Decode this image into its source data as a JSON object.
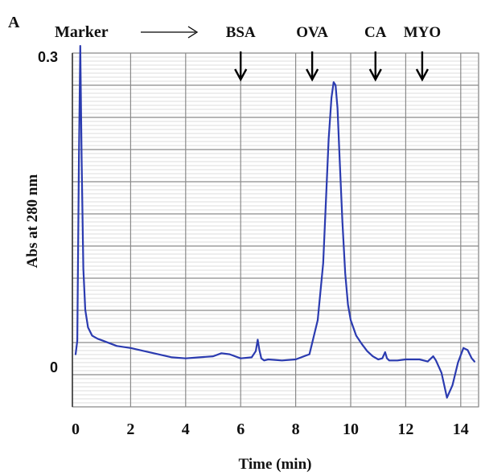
{
  "chart_data": {
    "type": "line",
    "panel_label": "A",
    "title": "",
    "xlabel": "Time (min)",
    "ylabel": "Abs at 280 nm",
    "xlim": [
      0,
      14.5
    ],
    "x_ticks": [
      "0",
      "2",
      "4",
      "6",
      "8",
      "10",
      "12",
      "14"
    ],
    "y_ticks": [
      "0",
      "0.3"
    ],
    "grid": true,
    "line_color": "#2b3bb0",
    "grid_color": "#8a8a8a",
    "marker_label": "Marker",
    "markers": [
      {
        "label": "BSA",
        "x": 6.0
      },
      {
        "label": "OVA",
        "x": 8.6
      },
      {
        "label": "CA",
        "x": 10.9
      },
      {
        "label": "MYO",
        "x": 12.6
      }
    ],
    "series": [
      {
        "x": [
          0,
          0.06,
          0.12,
          0.17,
          0.22,
          0.28,
          0.35,
          0.45,
          0.6,
          0.8,
          1.0,
          1.5,
          2.0,
          2.5,
          3.0,
          3.5,
          4.0,
          4.5,
          5.0,
          5.3,
          5.6,
          6.0,
          6.4,
          6.55,
          6.62,
          6.68,
          6.75,
          6.85,
          7.0,
          7.5,
          8.0,
          8.5,
          8.8,
          9.0,
          9.1,
          9.2,
          9.3,
          9.38,
          9.45,
          9.52,
          9.6,
          9.7,
          9.8,
          9.9,
          10.0,
          10.2,
          10.4,
          10.6,
          10.8,
          11.0,
          11.15,
          11.25,
          11.32,
          11.4,
          11.5,
          11.7,
          12.0,
          12.5,
          12.8,
          13.0,
          13.1,
          13.3,
          13.5,
          13.7,
          13.9,
          14.1,
          14.25,
          14.4,
          14.5
        ],
        "y": [
          0.012,
          0.025,
          0.2,
          0.31,
          0.2,
          0.095,
          0.055,
          0.038,
          0.03,
          0.027,
          0.025,
          0.02,
          0.018,
          0.015,
          0.012,
          0.009,
          0.008,
          0.009,
          0.01,
          0.013,
          0.012,
          0.008,
          0.009,
          0.015,
          0.026,
          0.016,
          0.008,
          0.006,
          0.007,
          0.006,
          0.007,
          0.012,
          0.045,
          0.1,
          0.16,
          0.22,
          0.26,
          0.275,
          0.272,
          0.25,
          0.2,
          0.14,
          0.09,
          0.06,
          0.045,
          0.03,
          0.022,
          0.015,
          0.01,
          0.007,
          0.008,
          0.014,
          0.008,
          0.006,
          0.006,
          0.006,
          0.007,
          0.007,
          0.005,
          0.01,
          0.006,
          -0.006,
          -0.03,
          -0.018,
          0.004,
          0.018,
          0.016,
          0.008,
          0.005
        ]
      }
    ]
  }
}
